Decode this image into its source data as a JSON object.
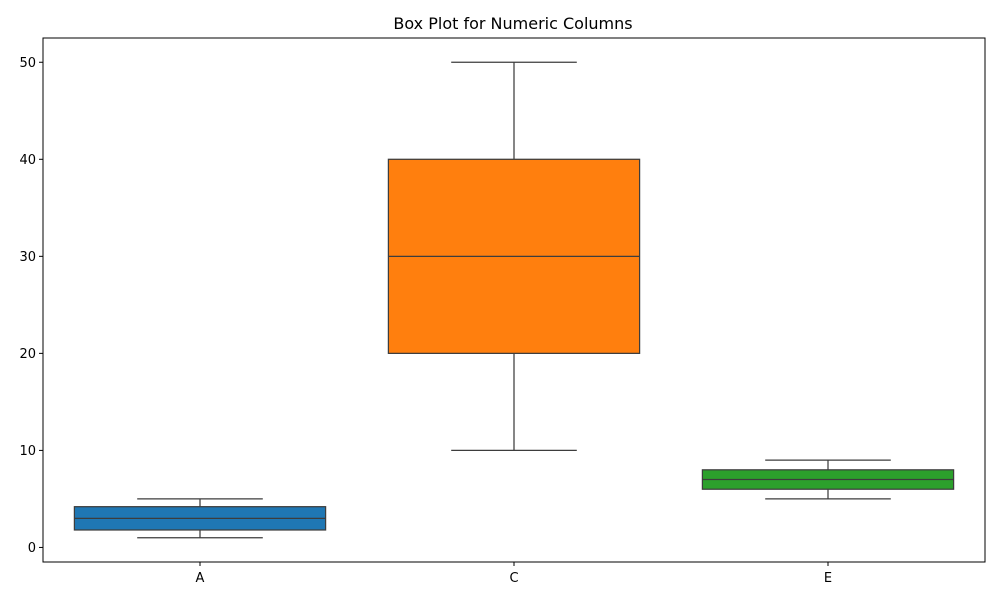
{
  "chart_data": {
    "type": "box",
    "title": "Box Plot for Numeric Columns",
    "xlabel": "",
    "ylabel": "",
    "categories": [
      "A",
      "C",
      "E"
    ],
    "ylim": [
      -1.5,
      52.5
    ],
    "yticks": [
      0,
      10,
      20,
      30,
      40,
      50
    ],
    "grid": false,
    "legend": "none",
    "boxes": [
      {
        "category": "A",
        "whisker_low": 1,
        "q1": 1.8,
        "median": 3,
        "q3": 4.2,
        "whisker_high": 5,
        "color": "#1f77b4"
      },
      {
        "category": "C",
        "whisker_low": 10,
        "q1": 20,
        "median": 30,
        "q3": 40,
        "whisker_high": 50,
        "color": "#ff7f0e"
      },
      {
        "category": "E",
        "whisker_low": 5,
        "q1": 6,
        "median": 7,
        "q3": 8,
        "whisker_high": 9,
        "color": "#2ca02c"
      }
    ]
  }
}
